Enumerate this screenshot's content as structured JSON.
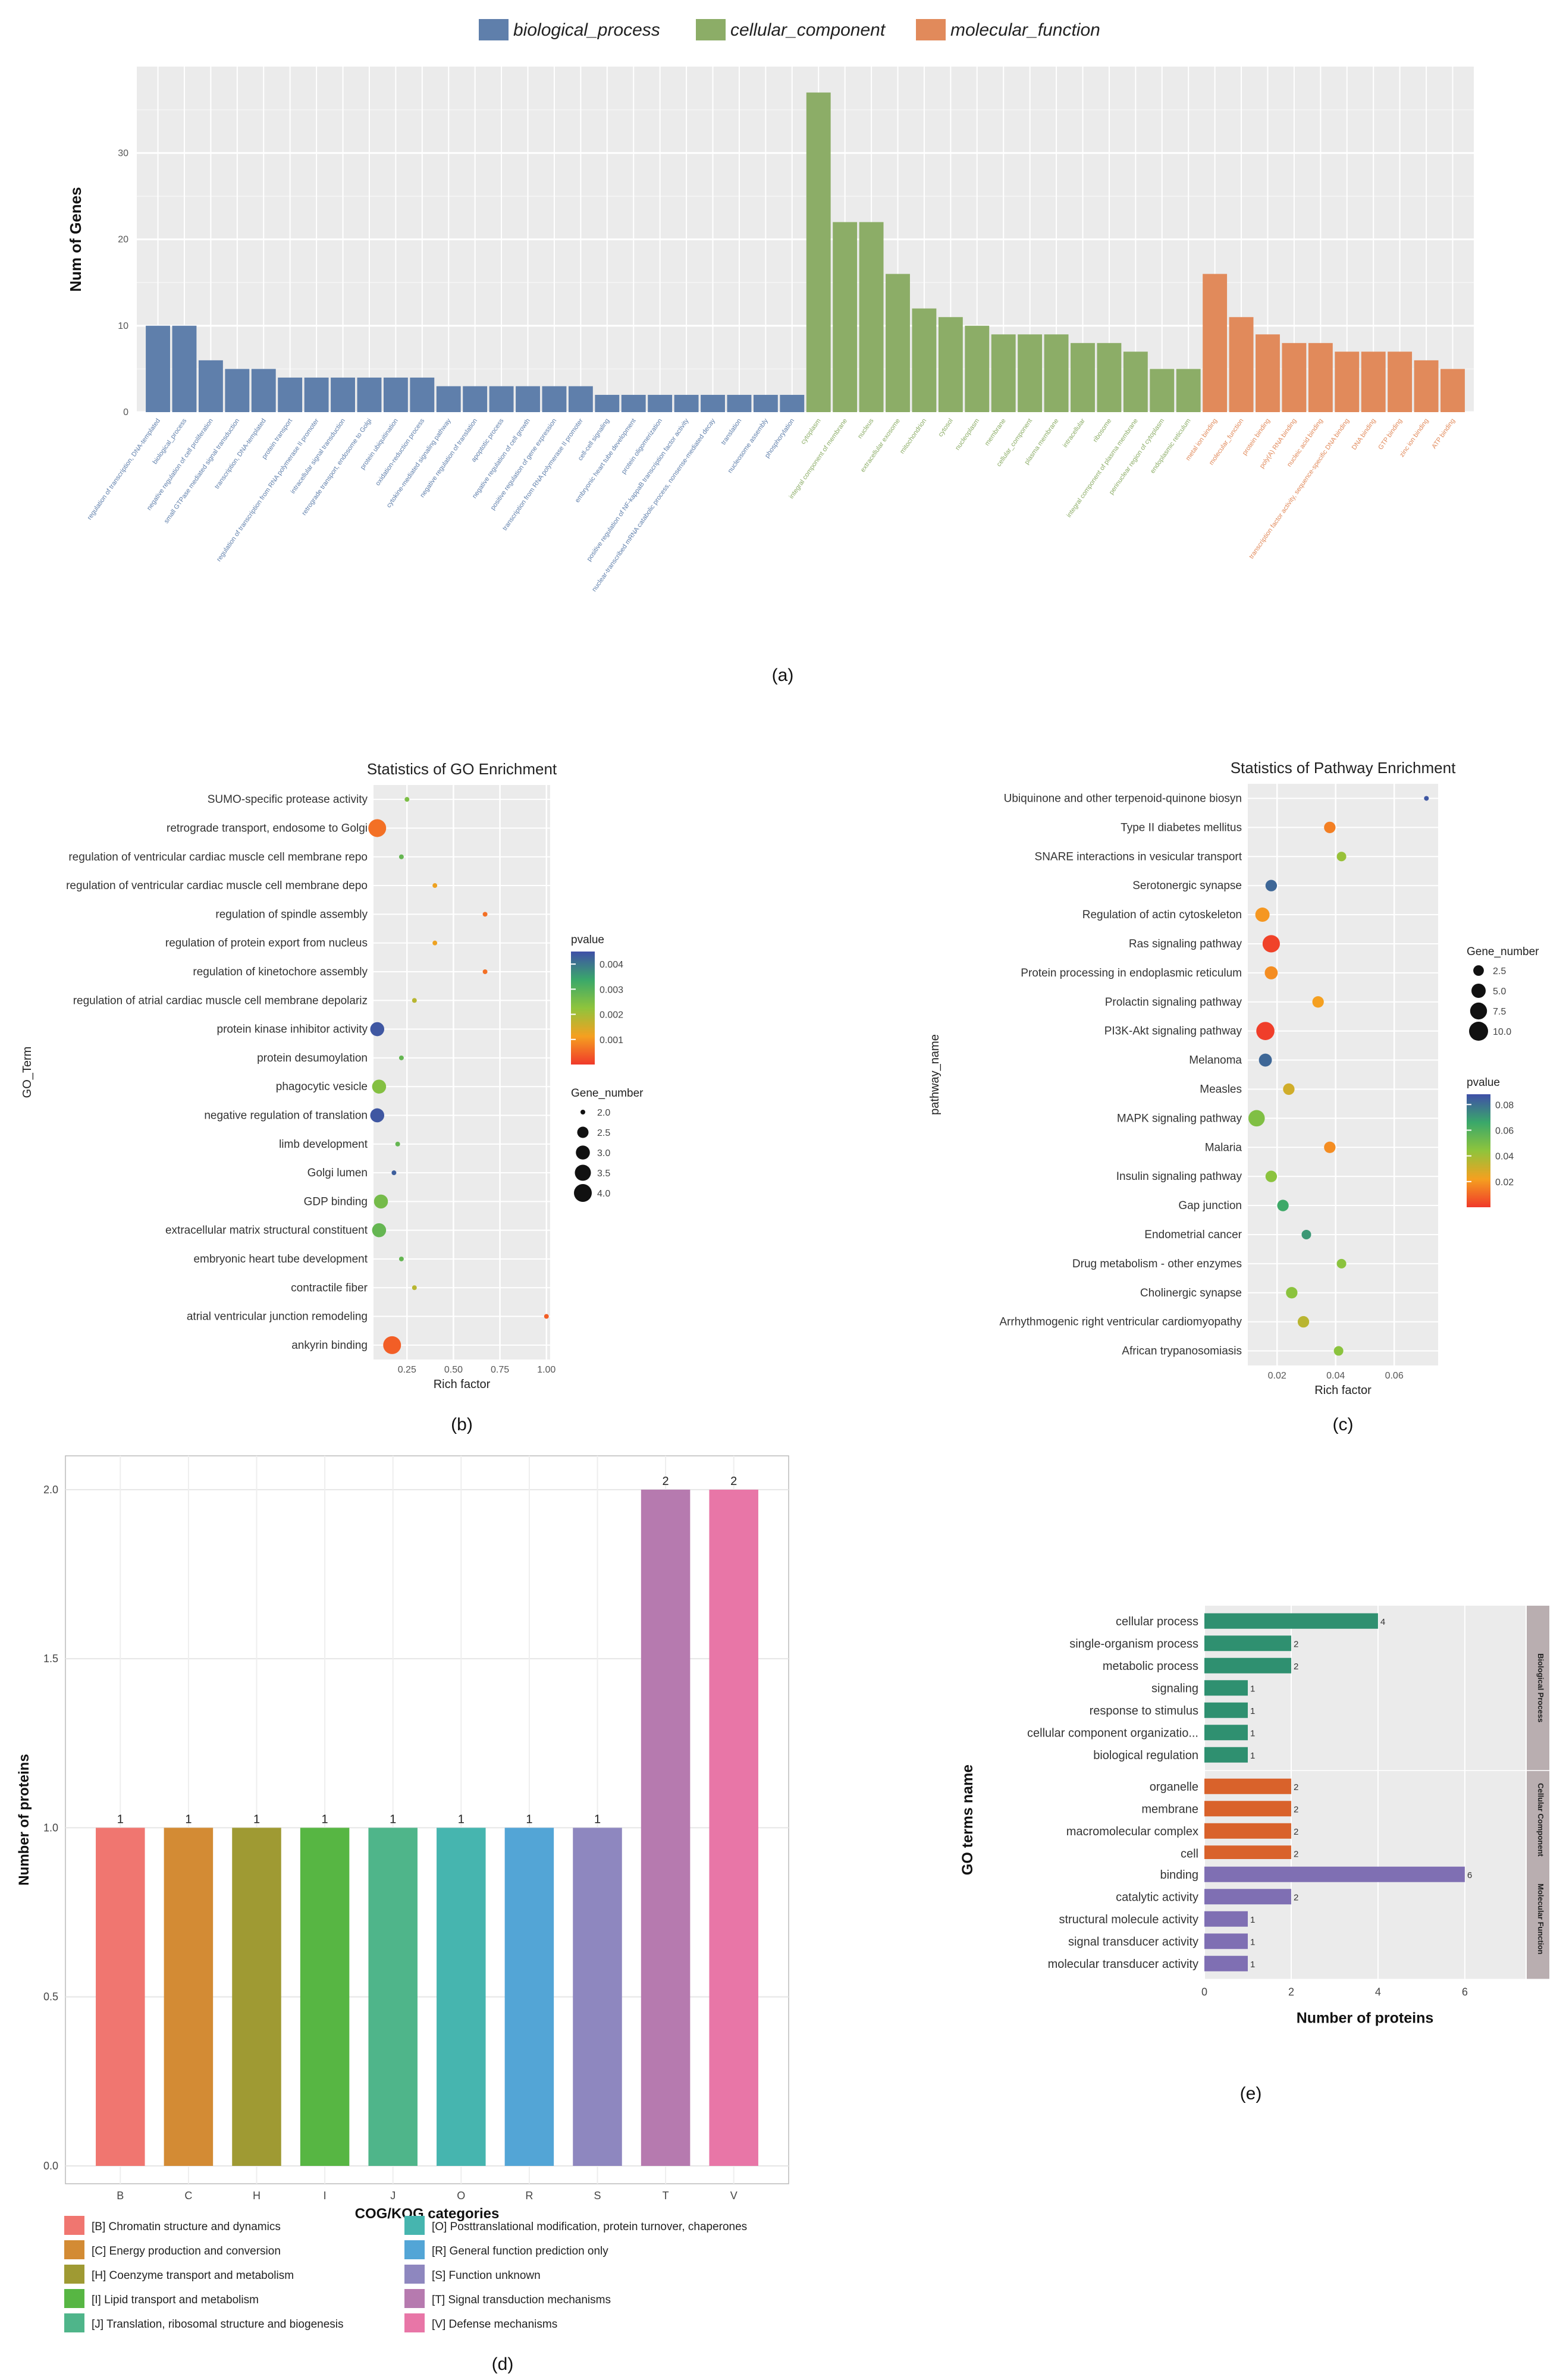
{
  "colors": {
    "bp": "#5f7fab",
    "cc": "#8cad67",
    "mf": "#e18a5b",
    "panel_bg": "#ebebeb",
    "grid": "#ffffff",
    "go_e_bp": "#2f9070",
    "go_e_cc": "#d9622b",
    "go_e_mf": "#7f6fb3",
    "strip": "#b9aeb0"
  },
  "chart_data": [
    {
      "id": "a",
      "type": "bar",
      "caption": "(a)",
      "title": "",
      "ylabel": "Num of Genes",
      "xlabel": "",
      "ylim": [
        0,
        40
      ],
      "yticks": [
        0,
        10,
        20,
        30
      ],
      "legend": [
        {
          "key": "bp",
          "label": "biological_process"
        },
        {
          "key": "cc",
          "label": "cellular_component"
        },
        {
          "key": "mf",
          "label": "molecular_function"
        }
      ],
      "categories": [
        "regulation of transcription, DNA-templated",
        "biological_process",
        "negative regulation of cell proliferation",
        "small GTPase mediated signal transduction",
        "transcription, DNA-templated",
        "protein transport",
        "regulation of transcription from RNA polymerase II promoter",
        "intracellular signal transduction",
        "retrograde transport, endosome to Golgi",
        "protein ubiquitination",
        "oxidation-reduction process",
        "cytokine-mediated signaling pathway",
        "negative regulation of translation",
        "apoptotic process",
        "negative regulation of cell growth",
        "positive regulation of gene expression",
        "transcription from RNA polymerase II promoter",
        "cell-cell signaling",
        "embryonic heart tube development",
        "protein oligomerization",
        "positive regulation of NF-kappaB transcription factor activity",
        "nuclear-transcribed mRNA catabolic process, nonsense-mediated decay",
        "translation",
        "nucleosome assembly",
        "phosphorylation",
        "cytoplasm",
        "integral component of membrane",
        "nucleus",
        "extracellular exosome",
        "mitochondrion",
        "cytosol",
        "nucleoplasm",
        "membrane",
        "cellular_component",
        "plasma membrane",
        "intracellular",
        "ribosome",
        "integral component of plasma membrane",
        "perinuclear region of cytoplasm",
        "endoplasmic reticulum",
        "metal ion binding",
        "molecular_function",
        "protein binding",
        "poly(A) RNA binding",
        "nucleic acid binding",
        "transcription factor activity, sequence-specific DNA binding",
        "DNA binding",
        "GTP binding",
        "zinc ion binding",
        "ATP binding"
      ],
      "values": [
        10,
        10,
        6,
        5,
        5,
        4,
        4,
        4,
        4,
        4,
        4,
        3,
        3,
        3,
        3,
        3,
        3,
        2,
        2,
        2,
        2,
        2,
        2,
        2,
        2,
        37,
        22,
        22,
        16,
        12,
        11,
        10,
        9,
        9,
        9,
        8,
        8,
        7,
        5,
        5,
        16,
        11,
        9,
        8,
        8,
        7,
        7,
        7,
        6,
        5
      ],
      "groups": [
        "bp",
        "bp",
        "bp",
        "bp",
        "bp",
        "bp",
        "bp",
        "bp",
        "bp",
        "bp",
        "bp",
        "bp",
        "bp",
        "bp",
        "bp",
        "bp",
        "bp",
        "bp",
        "bp",
        "bp",
        "bp",
        "bp",
        "bp",
        "bp",
        "bp",
        "cc",
        "cc",
        "cc",
        "cc",
        "cc",
        "cc",
        "cc",
        "cc",
        "cc",
        "cc",
        "cc",
        "cc",
        "cc",
        "cc",
        "cc",
        "mf",
        "mf",
        "mf",
        "mf",
        "mf",
        "mf",
        "mf",
        "mf",
        "mf",
        "mf"
      ]
    },
    {
      "id": "b",
      "type": "scatter",
      "caption": "(b)",
      "title": "Statistics of GO Enrichment",
      "xlabel": "Rich factor",
      "ylabel": "GO_Term",
      "xlim": [
        0.07,
        1.02
      ],
      "xticks": [
        0.25,
        0.5,
        0.75,
        1.0
      ],
      "xtick_labels": [
        "0.25",
        "0.50",
        "0.75",
        "1.00"
      ],
      "size_legend_title": "Gene_number",
      "size_legend": [
        2.0,
        2.5,
        3.0,
        3.5,
        4.0
      ],
      "size_legend_labels": [
        "2.0",
        "2.5",
        "3.0",
        "3.5",
        "4.0"
      ],
      "color_legend_title": "pvalue",
      "color_range": [
        0,
        0.0045
      ],
      "color_ticks": [
        0.001,
        0.002,
        0.003,
        0.004
      ],
      "color_tick_labels": [
        "0.001",
        "0.002",
        "0.003",
        "0.004"
      ],
      "terms": [
        "SUMO-specific protease activity",
        "retrograde transport, endosome to Golgi",
        "regulation of ventricular cardiac muscle cell membrane repo",
        "regulation of ventricular cardiac muscle cell membrane depo",
        "regulation of spindle assembly",
        "regulation of protein export from nucleus",
        "regulation of kinetochore assembly",
        "regulation of atrial cardiac muscle cell membrane depolariz",
        "protein kinase inhibitor activity",
        "protein desumoylation",
        "phagocytic vesicle",
        "negative regulation of translation",
        "limb development",
        "Golgi lumen",
        "GDP binding",
        "extracellular matrix structural constituent",
        "embryonic heart tube development",
        "contractile fiber",
        "atrial ventricular junction remodeling",
        "ankyrin binding"
      ],
      "rich_factor": [
        0.25,
        0.09,
        0.22,
        0.4,
        0.67,
        0.4,
        0.67,
        0.29,
        0.09,
        0.22,
        0.1,
        0.09,
        0.2,
        0.18,
        0.11,
        0.1,
        0.22,
        0.29,
        1.0,
        0.17
      ],
      "gene_number": [
        2,
        4,
        2,
        2,
        2,
        2,
        2,
        2,
        3,
        2,
        3,
        3,
        2,
        2,
        3,
        3,
        2,
        2,
        2,
        4
      ],
      "pvalue": [
        0.0025,
        0.0006,
        0.0028,
        0.0012,
        0.0006,
        0.0012,
        0.0006,
        0.0018,
        0.0044,
        0.0028,
        0.0024,
        0.0044,
        0.0028,
        0.0043,
        0.0026,
        0.0028,
        0.0028,
        0.0018,
        0.0004,
        0.0004
      ]
    },
    {
      "id": "c",
      "type": "scatter",
      "caption": "(c)",
      "title": "Statistics of Pathway Enrichment",
      "xlabel": "Rich factor",
      "ylabel": "pathway_name",
      "xlim": [
        0.01,
        0.075
      ],
      "xticks": [
        0.02,
        0.04,
        0.06
      ],
      "xtick_labels": [
        "0.02",
        "0.04",
        "0.06"
      ],
      "size_legend_title": "Gene_number",
      "size_legend": [
        2.5,
        5.0,
        7.5,
        10.0
      ],
      "size_legend_labels": [
        "2.5",
        "5.0",
        "7.5",
        "10.0"
      ],
      "color_legend_title": "pvalue",
      "color_range": [
        0,
        0.088
      ],
      "color_ticks": [
        0.02,
        0.04,
        0.06,
        0.08
      ],
      "color_tick_labels": [
        "0.02",
        "0.04",
        "0.06",
        "0.08"
      ],
      "terms": [
        "Ubiquinone and other terpenoid-quinone biosyn",
        "Type II diabetes mellitus",
        "SNARE interactions in vesicular transport",
        "Serotonergic synapse",
        "Regulation of actin cytoskeleton",
        "Ras signaling pathway",
        "Protein processing in endoplasmic reticulum",
        "Prolactin signaling pathway",
        "PI3K-Akt signaling pathway",
        "Melanoma",
        "Measles",
        "MAPK signaling pathway",
        "Malaria",
        "Insulin signaling pathway",
        "Gap junction",
        "Endometrial cancer",
        "Drug metabolism - other enzymes",
        "Cholinergic synapse",
        "Arrhythmogenic right ventricular cardiomyopathy",
        "African trypanosomiasis"
      ],
      "rich_factor": [
        0.071,
        0.038,
        0.042,
        0.018,
        0.015,
        0.018,
        0.018,
        0.034,
        0.016,
        0.016,
        0.024,
        0.013,
        0.038,
        0.018,
        0.022,
        0.03,
        0.042,
        0.025,
        0.029,
        0.041
      ],
      "gene_number": [
        1,
        3,
        2,
        3,
        5,
        8,
        4,
        3,
        9,
        4,
        3,
        7,
        3,
        3,
        3,
        2,
        2,
        3,
        3,
        2
      ],
      "pvalue": [
        0.086,
        0.015,
        0.042,
        0.082,
        0.02,
        0.002,
        0.018,
        0.022,
        0.001,
        0.082,
        0.03,
        0.048,
        0.018,
        0.045,
        0.065,
        0.07,
        0.045,
        0.045,
        0.035,
        0.045
      ]
    },
    {
      "id": "d",
      "type": "bar",
      "caption": "(d)",
      "title": "",
      "xlabel": "COG/KOG categories",
      "ylabel": "Number of proteins",
      "ylim": [
        0,
        2.1
      ],
      "yticks": [
        0.0,
        0.5,
        1.0,
        1.5,
        2.0
      ],
      "ytick_labels": [
        "0.0",
        "0.5",
        "1.0",
        "1.5",
        "2.0"
      ],
      "categories": [
        "B",
        "C",
        "H",
        "I",
        "J",
        "O",
        "R",
        "S",
        "T",
        "V"
      ],
      "values": [
        1,
        1,
        1,
        1,
        1,
        1,
        1,
        1,
        2,
        2
      ],
      "value_labels": [
        "1",
        "1",
        "1",
        "1",
        "1",
        "1",
        "1",
        "1",
        "2",
        "2"
      ],
      "bar_colors": [
        "#f07670",
        "#d38b34",
        "#9f9a33",
        "#57b643",
        "#4fb58a",
        "#46b5af",
        "#53a5d6",
        "#8e87bf",
        "#b67aaf",
        "#e876a7"
      ],
      "legend": [
        "[B] Chromatin structure and dynamics",
        "[C] Energy production and conversion",
        "[H] Coenzyme transport and metabolism",
        "[I] Lipid transport and metabolism",
        "[J] Translation, ribosomal structure and biogenesis",
        "[O] Posttranslational modification, protein turnover, chaperones",
        "[R] General function prediction only",
        "[S] Function unknown",
        "[T] Signal transduction mechanisms",
        "[V] Defense mechanisms"
      ]
    },
    {
      "id": "e",
      "type": "bar",
      "caption": "(e)",
      "title": "",
      "orientation": "horizontal",
      "xlabel": "Number of proteins",
      "ylabel": "GO terms name",
      "xlim": [
        0,
        7.4
      ],
      "xticks": [
        0,
        2,
        4,
        6
      ],
      "facets": [
        {
          "name": "Biological Process",
          "color_key": "go_e_bp",
          "terms": [
            "cellular process",
            "single-organism process",
            "metabolic process",
            "signaling",
            "response to stimulus",
            "cellular component organizatio...",
            "biological regulation"
          ],
          "values": [
            4,
            2,
            2,
            1,
            1,
            1,
            1
          ],
          "value_labels": [
            "4",
            "2",
            "2",
            "1",
            "1",
            "1",
            "1"
          ]
        },
        {
          "name": "Cellular Component",
          "color_key": "go_e_cc",
          "terms": [
            "organelle",
            "membrane",
            "macromolecular complex",
            "cell"
          ],
          "values": [
            2,
            2,
            2,
            2
          ],
          "value_labels": [
            "2",
            "2",
            "2",
            "2"
          ]
        },
        {
          "name": "Molecular Function",
          "color_key": "go_e_mf",
          "terms": [
            "binding",
            "catalytic activity",
            "structural molecule activity",
            "signal transducer activity",
            "molecular transducer activity"
          ],
          "values": [
            6,
            2,
            1,
            1,
            1
          ],
          "value_labels": [
            "6",
            "2",
            "1",
            "1",
            "1"
          ]
        }
      ]
    }
  ]
}
